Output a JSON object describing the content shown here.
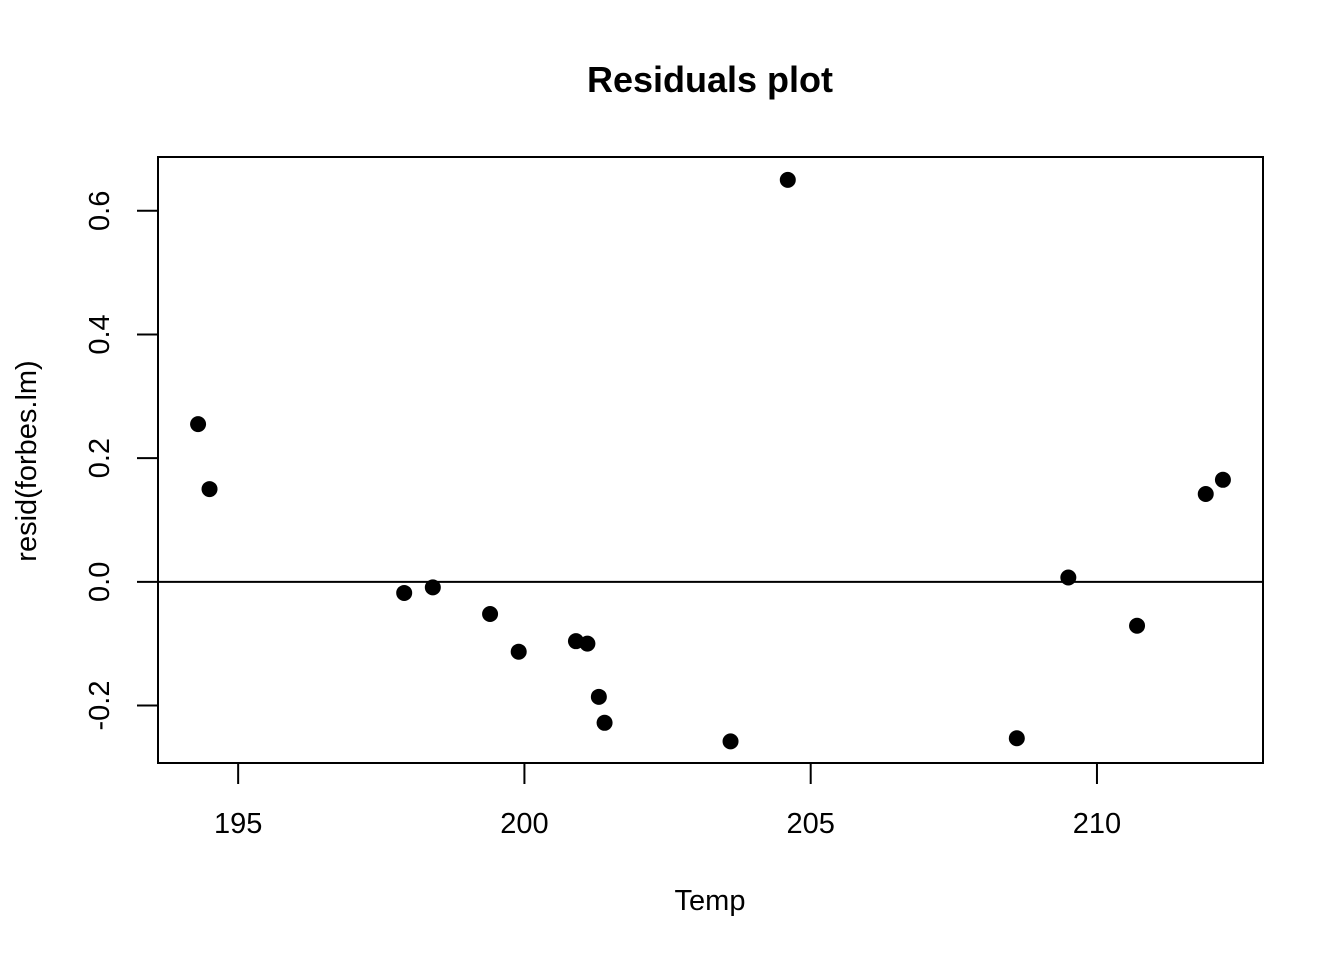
{
  "chart_data": {
    "type": "scatter",
    "title": "Residuals plot",
    "xlabel": "Temp",
    "ylabel": "resid(forbes.lm)",
    "xlim": [
      193.6,
      212.9
    ],
    "ylim": [
      -0.293,
      0.687
    ],
    "xticks": [
      195,
      200,
      205,
      210
    ],
    "yticks": [
      -0.2,
      0.0,
      0.2,
      0.4,
      0.6
    ],
    "ytick_labels": [
      "-0.2",
      "0.0",
      "0.2",
      "0.4",
      "0.6"
    ],
    "reference_line": {
      "y": 0
    },
    "grid": false,
    "legend": "none",
    "point_color": "#000000",
    "points": [
      {
        "x": 194.3,
        "y": 0.255
      },
      {
        "x": 194.5,
        "y": 0.15
      },
      {
        "x": 197.9,
        "y": -0.018
      },
      {
        "x": 198.4,
        "y": -0.009
      },
      {
        "x": 199.4,
        "y": -0.052
      },
      {
        "x": 199.9,
        "y": -0.113
      },
      {
        "x": 200.9,
        "y": -0.096
      },
      {
        "x": 201.1,
        "y": -0.1
      },
      {
        "x": 201.3,
        "y": -0.186
      },
      {
        "x": 201.4,
        "y": -0.228
      },
      {
        "x": 203.6,
        "y": -0.258
      },
      {
        "x": 204.6,
        "y": 0.65
      },
      {
        "x": 208.6,
        "y": -0.253
      },
      {
        "x": 209.5,
        "y": 0.007
      },
      {
        "x": 210.7,
        "y": -0.071
      },
      {
        "x": 211.9,
        "y": 0.142
      },
      {
        "x": 212.2,
        "y": 0.165
      }
    ]
  }
}
